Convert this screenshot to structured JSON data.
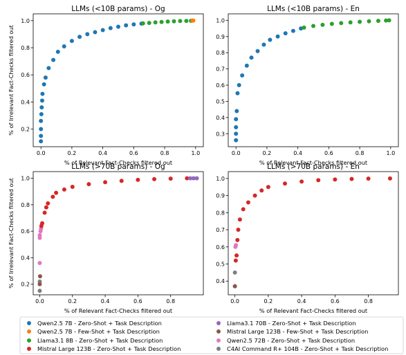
{
  "colors": {
    "qwen7_zero": "#1f77b4",
    "qwen7_few": "#ff7f0e",
    "llama8_zero": "#2ca02c",
    "mistral_zero": "#d62728",
    "llama70_zero": "#9467bd",
    "mistral_few": "#8c564b",
    "qwen72_zero": "#e377c2",
    "c4ai_zero": "#7f7f7f"
  },
  "legend": [
    {
      "key": "qwen7_zero",
      "label": "Qwen2.5 7B - Zero-Shot + Task Description"
    },
    {
      "key": "qwen7_few",
      "label": "Qwen2.5 7B - Few-Shot + Task Description"
    },
    {
      "key": "llama8_zero",
      "label": "Llama3.1 8B - Zero-Shot + Task Description"
    },
    {
      "key": "mistral_zero",
      "label": "Mistral Large 123B - Zero-Shot + Task Description"
    },
    {
      "key": "llama70_zero",
      "label": "Llama3.1 70B - Zero-Shot + Task Description"
    },
    {
      "key": "mistral_few",
      "label": "Mistral Large 123B - Few-Shot + Task Description"
    },
    {
      "key": "qwen72_zero",
      "label": "Qwen2.5 72B - Zero-Shot + Task Description"
    },
    {
      "key": "c4ai_zero",
      "label": "C4AI Command R+ 104B - Zero-Shot + Task Description"
    }
  ],
  "chart_data": [
    {
      "type": "scatter",
      "title": "LLMs (<10B params) - Og",
      "xlabel": "% of Relevant Fact-Checks filtered out",
      "ylabel": "% of Irrelevant Fact-Checks filtered out",
      "xlim": [
        -0.05,
        1.05
      ],
      "ylim": [
        0.07,
        1.05
      ],
      "xticks": [
        0.0,
        0.2,
        0.4,
        0.6,
        0.8,
        1.0
      ],
      "yticks": [
        0.2,
        0.4,
        0.6,
        0.8,
        1.0
      ],
      "series": [
        {
          "key": "qwen7_zero",
          "x": [
            0,
            0,
            0,
            0,
            0.003,
            0.005,
            0.008,
            0.01,
            0.02,
            0.03,
            0.05,
            0.08,
            0.11,
            0.15,
            0.2,
            0.25,
            0.3,
            0.35,
            0.4,
            0.45,
            0.5,
            0.55,
            0.6,
            0.65
          ],
          "y": [
            0.11,
            0.15,
            0.2,
            0.26,
            0.31,
            0.36,
            0.41,
            0.46,
            0.53,
            0.58,
            0.65,
            0.71,
            0.77,
            0.81,
            0.85,
            0.88,
            0.9,
            0.915,
            0.93,
            0.945,
            0.955,
            0.965,
            0.972,
            0.978
          ]
        },
        {
          "key": "llama8_zero",
          "x": [
            0.66,
            0.7,
            0.74,
            0.78,
            0.82,
            0.86,
            0.9,
            0.94,
            0.97
          ],
          "y": [
            0.98,
            0.983,
            0.987,
            0.99,
            0.993,
            0.995,
            0.997,
            0.998,
            0.999
          ]
        },
        {
          "key": "qwen7_few",
          "x": [
            0.98,
            0.985
          ],
          "y": [
            1.0,
            1.0
          ]
        }
      ]
    },
    {
      "type": "scatter",
      "title": "LLMs (<10B params) - En",
      "xlabel": "% of Relevant Fact-Checks filtered out",
      "ylabel": "",
      "xlim": [
        -0.05,
        1.05
      ],
      "ylim": [
        0.22,
        1.04
      ],
      "xticks": [
        0.0,
        0.2,
        0.4,
        0.6,
        0.8,
        1.0
      ],
      "yticks": [
        0.3,
        0.4,
        0.5,
        0.6,
        0.7,
        0.8,
        0.9,
        1.0
      ],
      "series": [
        {
          "key": "qwen7_zero",
          "x": [
            0,
            0,
            0,
            0,
            0.005,
            0.01,
            0.02,
            0.04,
            0.07,
            0.1,
            0.14,
            0.18,
            0.22,
            0.27,
            0.32,
            0.37,
            0.42
          ],
          "y": [
            0.26,
            0.3,
            0.34,
            0.39,
            0.44,
            0.55,
            0.6,
            0.66,
            0.72,
            0.77,
            0.81,
            0.85,
            0.88,
            0.9,
            0.92,
            0.935,
            0.95
          ]
        },
        {
          "key": "llama8_zero",
          "x": [
            0.44,
            0.5,
            0.56,
            0.62,
            0.68,
            0.74,
            0.8,
            0.86,
            0.92,
            0.97,
            0.99
          ],
          "y": [
            0.955,
            0.965,
            0.972,
            0.978,
            0.983,
            0.987,
            0.991,
            0.994,
            0.997,
            0.999,
            1.0
          ]
        }
      ]
    },
    {
      "type": "scatter",
      "title": "LLMs (>70B params) - Og",
      "xlabel": "% of Relevant Fact-Checks filtered out",
      "ylabel": "% of Irrelevant Fact-Checks filtered out",
      "xlim": [
        -0.04,
        1.0
      ],
      "ylim": [
        0.12,
        1.05
      ],
      "xticks": [
        0.0,
        0.2,
        0.4,
        0.6,
        0.8
      ],
      "yticks": [
        0.2,
        0.4,
        0.6,
        0.8,
        1.0
      ],
      "series": [
        {
          "key": "c4ai_zero",
          "x": [
            0,
            0
          ],
          "y": [
            0.15,
            0.22
          ]
        },
        {
          "key": "mistral_few",
          "x": [
            0,
            0.002
          ],
          "y": [
            0.2,
            0.26
          ]
        },
        {
          "key": "qwen72_zero",
          "x": [
            0,
            0,
            0,
            0.005,
            0.008
          ],
          "y": [
            0.36,
            0.55,
            0.57,
            0.6,
            0.62
          ]
        },
        {
          "key": "mistral_zero",
          "x": [
            0.01,
            0.015,
            0.03,
            0.04,
            0.05,
            0.08,
            0.1,
            0.15,
            0.2,
            0.3,
            0.4,
            0.5,
            0.6,
            0.7,
            0.8,
            0.9
          ],
          "y": [
            0.64,
            0.66,
            0.74,
            0.78,
            0.81,
            0.86,
            0.89,
            0.915,
            0.935,
            0.955,
            0.97,
            0.98,
            0.988,
            0.993,
            0.997,
            1.0
          ]
        },
        {
          "key": "llama70_zero",
          "x": [
            0.92,
            0.94,
            0.96
          ],
          "y": [
            1.0,
            1.0,
            1.0
          ]
        }
      ]
    },
    {
      "type": "scatter",
      "title": "LLMs (>70B params) - En",
      "xlabel": "% of Relevant Fact-Checks filtered out",
      "ylabel": "",
      "xlim": [
        -0.04,
        0.98
      ],
      "ylim": [
        0.32,
        1.04
      ],
      "xticks": [
        0.0,
        0.2,
        0.4,
        0.6,
        0.8
      ],
      "yticks": [
        0.4,
        0.5,
        0.6,
        0.7,
        0.8,
        0.9,
        1.0
      ],
      "series": [
        {
          "key": "c4ai_zero",
          "x": [
            0,
            0
          ],
          "y": [
            0.37,
            0.45
          ]
        },
        {
          "key": "mistral_few",
          "x": [
            0
          ],
          "y": [
            0.37
          ]
        },
        {
          "key": "qwen72_zero",
          "x": [
            0.003,
            0.006
          ],
          "y": [
            0.6,
            0.61
          ]
        },
        {
          "key": "mistral_zero",
          "x": [
            0.005,
            0.01,
            0.015,
            0.02,
            0.03,
            0.05,
            0.08,
            0.12,
            0.16,
            0.2,
            0.3,
            0.4,
            0.5,
            0.6,
            0.7,
            0.8,
            0.93
          ],
          "y": [
            0.52,
            0.55,
            0.64,
            0.7,
            0.76,
            0.82,
            0.86,
            0.9,
            0.93,
            0.95,
            0.97,
            0.982,
            0.99,
            0.994,
            0.997,
            0.999,
            1.0
          ]
        }
      ]
    }
  ]
}
